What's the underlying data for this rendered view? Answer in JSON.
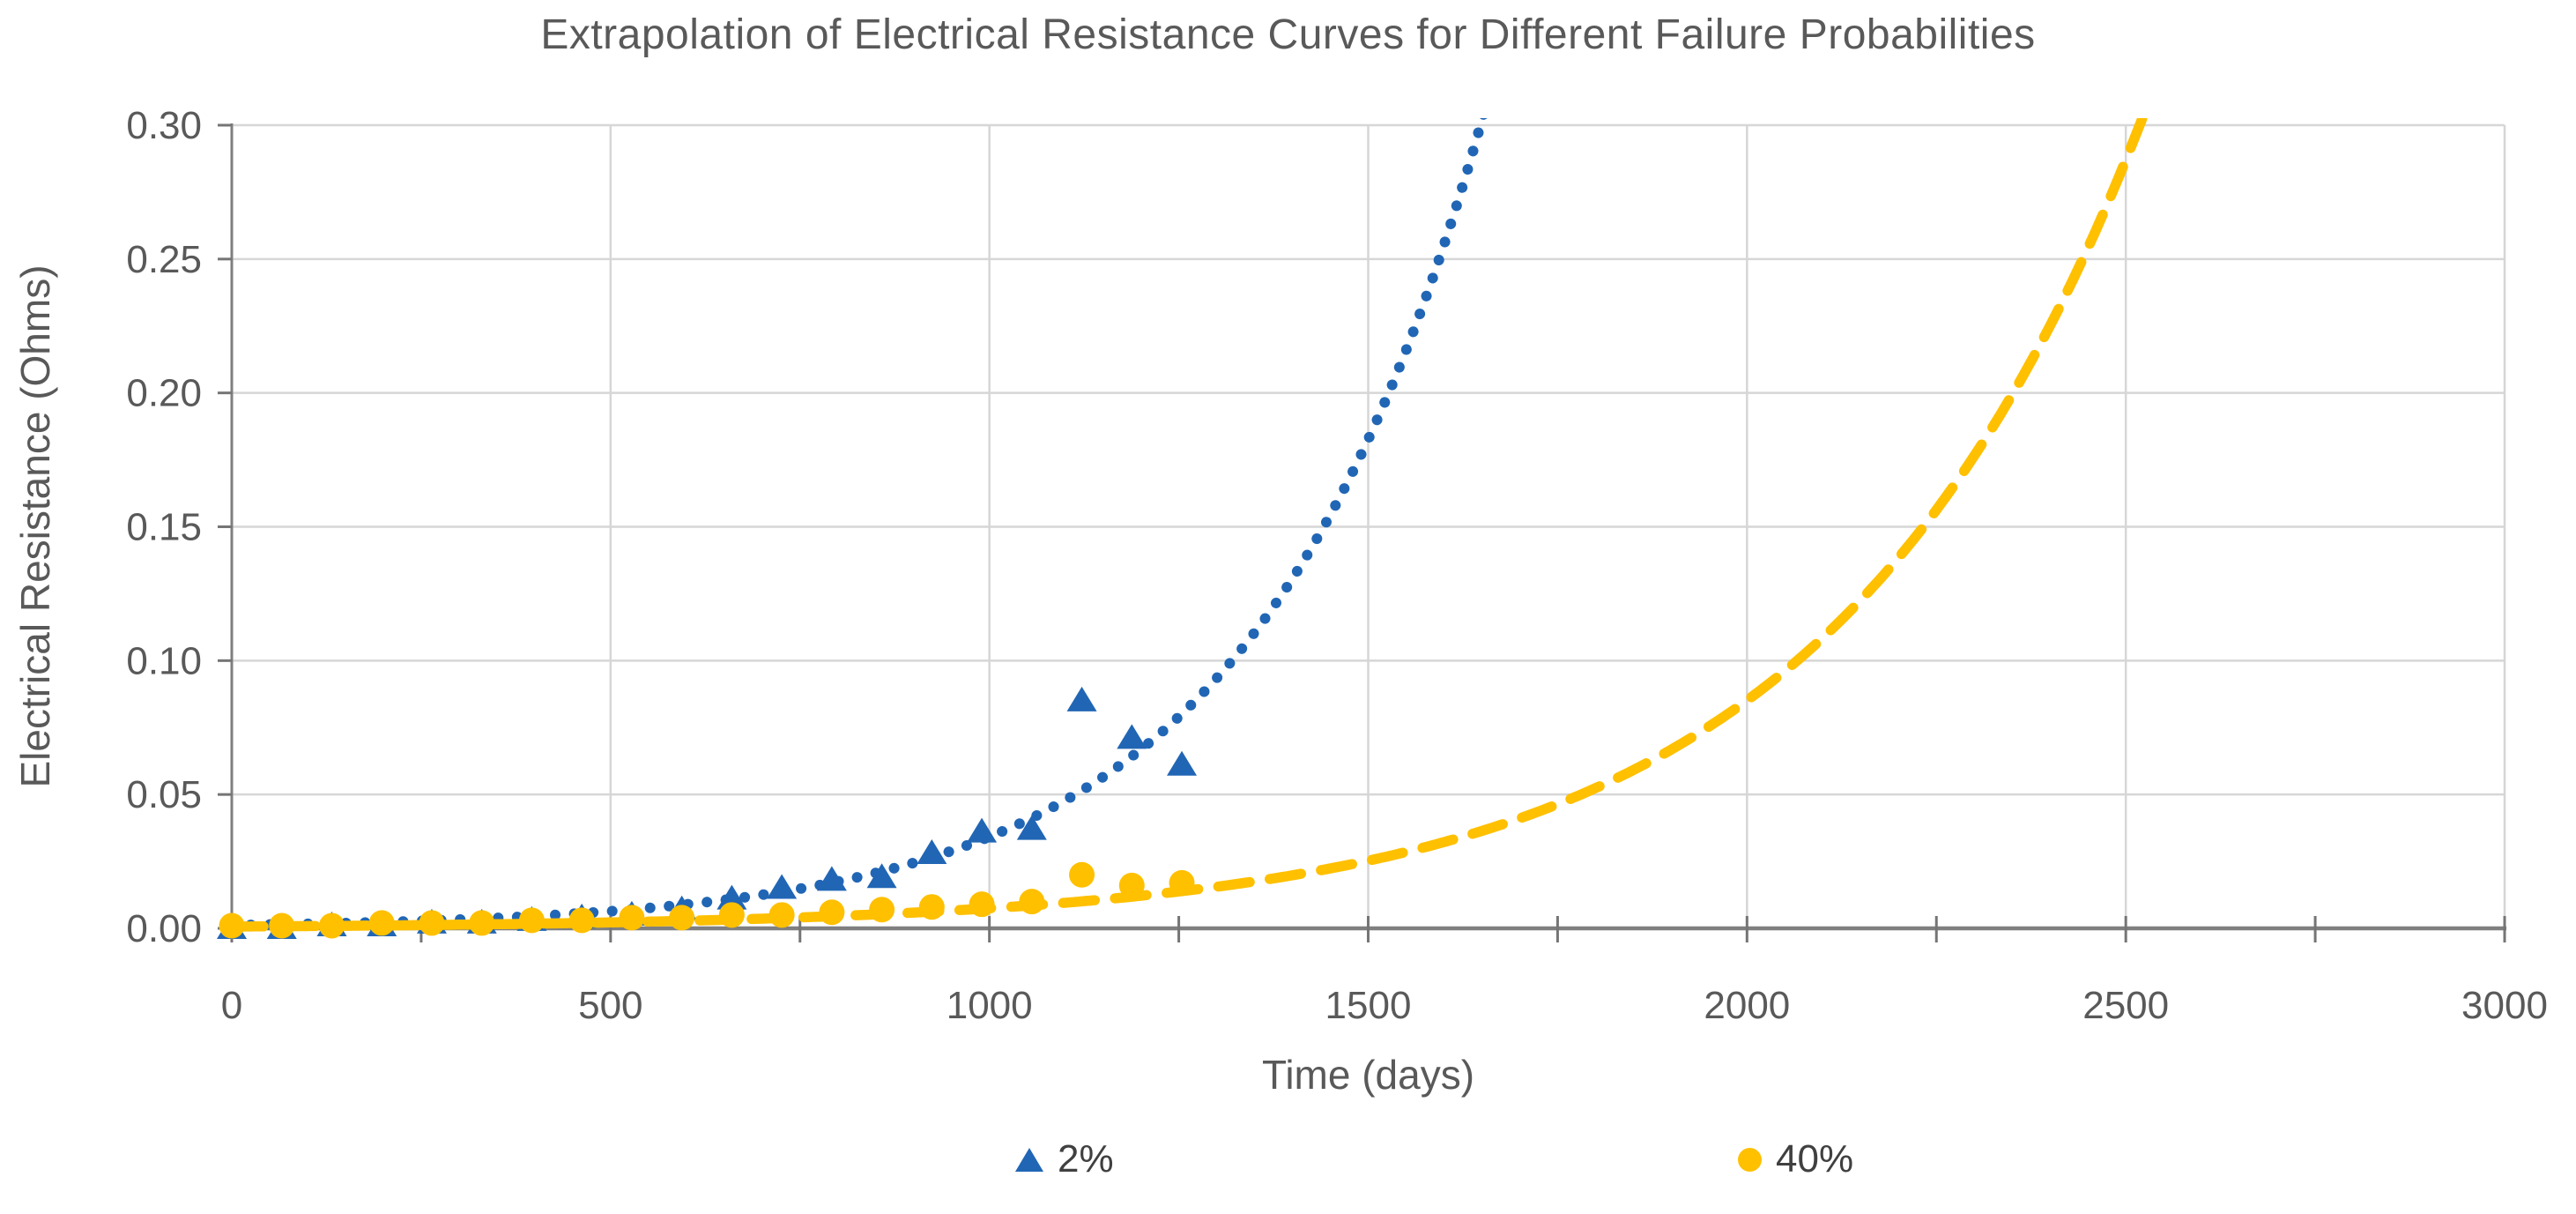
{
  "title": "Extrapolation of Electrical Resistance Curves for Different Failure Probabilities",
  "axes": {
    "x_title": "Time (days)",
    "y_title": "Electrical Resistance (Ohms)"
  },
  "legend": {
    "position": "bottom",
    "items": [
      {
        "label": "2%",
        "marker": "triangle",
        "color": "#2166B5"
      },
      {
        "label": "40%",
        "marker": "circle",
        "color": "#FFC000"
      }
    ]
  },
  "colors": {
    "series_2pct": "#2166B5",
    "series_40pct": "#FFC000",
    "text": "#595959",
    "gridline": "#D6D6D6",
    "axis_line": "#7F7F7F",
    "tick": "#757575",
    "background": "#FFFFFF"
  },
  "chart_data": {
    "type": "scatter",
    "title": "Extrapolation of Electrical Resistance Curves for Different Failure Probabilities",
    "xlabel": "Time (days)",
    "ylabel": "Electrical Resistance (Ohms)",
    "xlim": [
      0,
      3000
    ],
    "ylim": [
      0.0,
      0.3
    ],
    "x_major_tick_step": 500,
    "x_minor_tick_step": 250,
    "y_tick_step": 0.05,
    "x_tick_labels": [
      "0",
      "500",
      "1000",
      "1500",
      "2000",
      "2500",
      "3000"
    ],
    "y_tick_labels": [
      "0.00",
      "0.05",
      "0.10",
      "0.15",
      "0.20",
      "0.25",
      "0.30"
    ],
    "grid": {
      "horizontal": true,
      "vertical": true
    },
    "legend_position": "bottom",
    "x": [
      0,
      66,
      132,
      198,
      264,
      330,
      396,
      462,
      528,
      594,
      660,
      726,
      792,
      858,
      924,
      990,
      1056,
      1122,
      1188,
      1254
    ],
    "series": [
      {
        "name": "2%",
        "marker": "triangle",
        "color": "#2166B5",
        "values": [
          0.0,
          0.0,
          0.001,
          0.001,
          0.002,
          0.002,
          0.003,
          0.004,
          0.005,
          0.007,
          0.011,
          0.015,
          0.018,
          0.019,
          0.028,
          0.036,
          0.037,
          0.085,
          0.071,
          0.061
        ],
        "trendline": {
          "model": "exponential",
          "a": 0.0012,
          "b": 0.00335,
          "style": "dotted"
        }
      },
      {
        "name": "40%",
        "marker": "circle",
        "color": "#FFC000",
        "values": [
          0.001,
          0.001,
          0.001,
          0.002,
          0.002,
          0.002,
          0.003,
          0.003,
          0.004,
          0.004,
          0.005,
          0.005,
          0.006,
          0.007,
          0.008,
          0.009,
          0.01,
          0.02,
          0.016,
          0.017
        ],
        "trendline": {
          "model": "exponential",
          "a": 0.00066,
          "b": 0.00243,
          "style": "dashed"
        }
      }
    ]
  }
}
